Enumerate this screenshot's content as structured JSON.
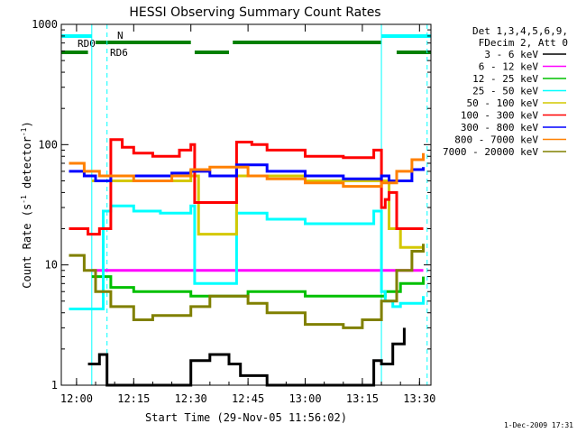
{
  "chart_data": {
    "type": "line",
    "title": "HESSI Observing Summary Count Rates",
    "xlabel": "Start Time (29-Nov-05 11:56:02)",
    "ylabel_main": "Count Rate (s",
    "ylabel_sup1": "-1",
    "ylabel_mid": " detector",
    "ylabel_sup2": "-1",
    "ylabel_end": ")",
    "yscale": "log",
    "ylim": [
      1,
      1000
    ],
    "xlim": [
      "11:56",
      "13:33"
    ],
    "x_ticks": [
      "12:00",
      "12:15",
      "12:30",
      "12:45",
      "13:00",
      "13:15",
      "13:30"
    ],
    "y_ticks": [
      "1",
      "10",
      "100",
      "1000"
    ],
    "legend_header": [
      "Det 1,3,4,5,6,9,",
      "FDecim 2, Att 0"
    ],
    "legend_position": "right",
    "footer_date": "1-Dec-2009 17:31",
    "flags": {
      "rd0_label": "RD0",
      "n_label": "N",
      "rd6_label": "RD6",
      "rd0_color": "#00ffff",
      "rd6_color": "#008000"
    },
    "vertical_markers_solid": [
      "12:04",
      "13:20"
    ],
    "vertical_markers_dashed": [
      "12:08",
      "13:32"
    ],
    "series": [
      {
        "name": "3 - 6 keV",
        "color": "#000000",
        "x": [
          "12:03",
          "12:06",
          "12:08",
          "12:20",
          "12:30",
          "12:35",
          "12:40",
          "12:43",
          "12:50",
          "13:00",
          "13:10",
          "13:15",
          "13:18",
          "13:20",
          "13:23",
          "13:26"
        ],
        "values": [
          1.5,
          1.8,
          1,
          1,
          1.6,
          1.8,
          1.5,
          1.2,
          1,
          1,
          1,
          1,
          1.6,
          1.5,
          2.2,
          3
        ]
      },
      {
        "name": "6 - 12 keV",
        "color": "#ff00ff",
        "x": [
          "12:04",
          "12:09",
          "12:15",
          "12:30",
          "12:45",
          "13:00",
          "13:15",
          "13:21",
          "13:25",
          "13:31"
        ],
        "values": [
          9,
          9,
          9,
          9,
          9,
          9,
          9,
          9,
          9,
          9
        ]
      },
      {
        "name": "12 - 25 keV",
        "color": "#00c000",
        "x": [
          "12:04",
          "12:09",
          "12:15",
          "12:30",
          "12:45",
          "13:00",
          "13:15",
          "13:21",
          "13:25",
          "13:31"
        ],
        "values": [
          8,
          6.5,
          6,
          5.5,
          6,
          5.5,
          5.5,
          6,
          7,
          8
        ]
      },
      {
        "name": "25 - 50 keV",
        "color": "#00ffff",
        "x": [
          "11:58",
          "12:03",
          "12:07",
          "12:09",
          "12:15",
          "12:22",
          "12:30",
          "12:31",
          "12:41",
          "12:42",
          "12:50",
          "13:00",
          "13:10",
          "13:18",
          "13:20",
          "13:21",
          "13:23",
          "13:25",
          "13:31"
        ],
        "values": [
          4.3,
          4.3,
          28,
          31,
          28,
          27,
          31,
          7,
          7,
          27,
          24,
          22,
          22,
          28,
          6,
          5,
          4.5,
          4.8,
          5.5
        ]
      },
      {
        "name": "50 - 100 keV",
        "color": "#d4c800",
        "x": [
          "12:04",
          "12:09",
          "12:15",
          "12:30",
          "12:32",
          "12:40",
          "12:42",
          "12:50",
          "13:00",
          "13:10",
          "13:20",
          "13:22",
          "13:25",
          "13:31"
        ],
        "values": [
          50,
          50,
          50,
          55,
          18,
          18,
          55,
          55,
          50,
          50,
          50,
          20,
          14,
          13
        ]
      },
      {
        "name": "100 - 300 keV",
        "color": "#ff0000",
        "x": [
          "11:58",
          "12:03",
          "12:06",
          "12:09",
          "12:12",
          "12:15",
          "12:20",
          "12:27",
          "12:30",
          "12:31",
          "12:40",
          "12:42",
          "12:46",
          "12:50",
          "13:00",
          "13:10",
          "13:18",
          "13:20",
          "13:21",
          "13:22",
          "13:24",
          "13:31"
        ],
        "values": [
          20,
          18,
          20,
          110,
          95,
          85,
          80,
          90,
          100,
          33,
          33,
          105,
          100,
          90,
          80,
          78,
          90,
          30,
          35,
          40,
          20,
          20
        ]
      },
      {
        "name": "300 - 800 keV",
        "color": "#0000ff",
        "x": [
          "11:58",
          "12:02",
          "12:05",
          "12:09",
          "12:15",
          "12:20",
          "12:25",
          "12:30",
          "12:35",
          "12:41",
          "12:42",
          "12:50",
          "13:00",
          "13:10",
          "13:15",
          "13:20",
          "13:22",
          "13:28",
          "13:31"
        ],
        "values": [
          60,
          55,
          50,
          55,
          55,
          55,
          58,
          60,
          55,
          55,
          68,
          60,
          55,
          52,
          52,
          55,
          50,
          62,
          65
        ]
      },
      {
        "name": "800 - 7000 keV",
        "color": "#ff8000",
        "x": [
          "11:58",
          "12:02",
          "12:06",
          "12:10",
          "12:15",
          "12:20",
          "12:25",
          "12:30",
          "12:35",
          "12:40",
          "12:45",
          "12:50",
          "13:00",
          "13:10",
          "13:15",
          "13:20",
          "13:24",
          "13:28",
          "13:31"
        ],
        "values": [
          70,
          60,
          55,
          55,
          50,
          50,
          55,
          62,
          65,
          65,
          55,
          52,
          48,
          45,
          45,
          48,
          60,
          75,
          85
        ]
      },
      {
        "name": "7000 - 20000 keV",
        "color": "#808000",
        "x": [
          "11:58",
          "12:02",
          "12:05",
          "12:09",
          "12:15",
          "12:20",
          "12:30",
          "12:35",
          "12:40",
          "12:45",
          "12:50",
          "13:00",
          "13:10",
          "13:15",
          "13:20",
          "13:24",
          "13:28",
          "13:31"
        ],
        "values": [
          12,
          9,
          6,
          4.5,
          3.5,
          3.8,
          4.5,
          5.5,
          5.5,
          4.8,
          4,
          3.2,
          3,
          3.5,
          5,
          9,
          13,
          15
        ]
      }
    ]
  }
}
